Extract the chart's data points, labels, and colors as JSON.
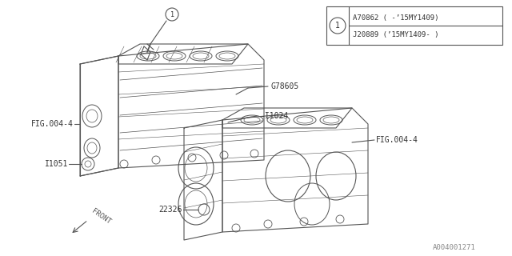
{
  "bg_color": "#ffffff",
  "line_color": "#555555",
  "lw": 0.8,
  "labels": {
    "part_number_1a": "A70862 ( -’15MY1409)",
    "part_number_1b": "J20889 (’15MY1409- )",
    "g78605": "G78605",
    "i1024": "-I1024",
    "fig004_4_left": "FIG.004-4",
    "fig004_4_right": "FIG.004-4",
    "i1051": "I1051",
    "22326": "22326",
    "front": "FRONT",
    "footer": "A004001271",
    "circle_num": "1"
  },
  "font_size": 7,
  "footer_font_size": 7
}
